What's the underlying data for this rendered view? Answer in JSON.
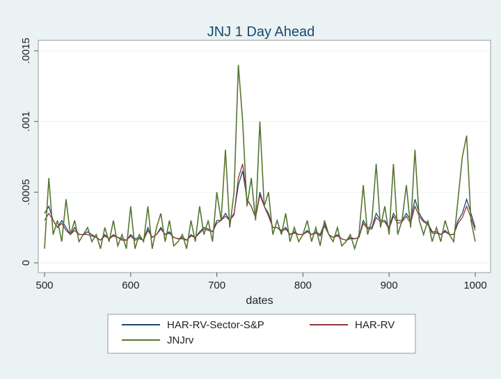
{
  "chart_data": {
    "type": "line",
    "title": "JNJ 1 Day Ahead",
    "x_label": "dates",
    "x": [
      500,
      505,
      510,
      515,
      520,
      525,
      530,
      535,
      540,
      545,
      550,
      555,
      560,
      565,
      570,
      575,
      580,
      585,
      590,
      595,
      600,
      605,
      610,
      615,
      620,
      625,
      630,
      635,
      640,
      645,
      650,
      655,
      660,
      665,
      670,
      675,
      680,
      685,
      690,
      695,
      700,
      705,
      710,
      715,
      720,
      725,
      730,
      735,
      740,
      745,
      750,
      755,
      760,
      765,
      770,
      775,
      780,
      785,
      790,
      795,
      800,
      805,
      810,
      815,
      820,
      825,
      830,
      835,
      840,
      845,
      850,
      855,
      860,
      865,
      870,
      875,
      880,
      885,
      890,
      895,
      900,
      905,
      910,
      915,
      920,
      925,
      930,
      935,
      940,
      945,
      950,
      955,
      960,
      965,
      970,
      975,
      980,
      985,
      990,
      995,
      1000
    ],
    "series": [
      {
        "name": "HAR-RV-Sector-S&P",
        "color": "#1a476f",
        "values": [
          0.00035,
          0.0004,
          0.0003,
          0.00025,
          0.0003,
          0.00025,
          0.0002,
          0.00025,
          0.0002,
          0.0002,
          0.00022,
          0.0002,
          0.00018,
          0.00016,
          0.0002,
          0.00017,
          0.0002,
          0.00018,
          0.00017,
          0.00016,
          0.0002,
          0.00017,
          0.00018,
          0.00016,
          0.00025,
          0.00018,
          0.0002,
          0.00025,
          0.0002,
          0.00022,
          0.00018,
          0.00017,
          0.00018,
          0.00016,
          0.0002,
          0.00018,
          0.00022,
          0.00025,
          0.00024,
          0.00022,
          0.0003,
          0.0003,
          0.00035,
          0.0003,
          0.00035,
          0.00055,
          0.00065,
          0.00045,
          0.0004,
          0.00032,
          0.0005,
          0.0004,
          0.00035,
          0.00025,
          0.00025,
          0.00023,
          0.00025,
          0.0002,
          0.00022,
          0.0002,
          0.0002,
          0.00023,
          0.0002,
          0.00022,
          0.0002,
          0.00028,
          0.0002,
          0.00018,
          0.0002,
          0.00017,
          0.00016,
          0.00018,
          0.00017,
          0.00018,
          0.0003,
          0.00025,
          0.00025,
          0.00035,
          0.0003,
          0.0003,
          0.00025,
          0.00035,
          0.0003,
          0.0003,
          0.00035,
          0.0003,
          0.00045,
          0.00035,
          0.0003,
          0.00028,
          0.00022,
          0.00022,
          0.0002,
          0.00023,
          0.0002,
          0.0002,
          0.0003,
          0.00035,
          0.00045,
          0.00035,
          0.00025
        ]
      },
      {
        "name": "HAR-RV",
        "color": "#90353b",
        "values": [
          0.0003,
          0.00035,
          0.0003,
          0.00025,
          0.00028,
          0.00023,
          0.0002,
          0.00023,
          0.0002,
          0.0002,
          0.0002,
          0.00019,
          0.00018,
          0.00016,
          0.00019,
          0.00017,
          0.00019,
          0.00018,
          0.00016,
          0.00016,
          0.00019,
          0.00016,
          0.00017,
          0.00016,
          0.00023,
          0.00018,
          0.0002,
          0.00024,
          0.0002,
          0.00021,
          0.00018,
          0.00017,
          0.00017,
          0.00016,
          0.00019,
          0.00018,
          0.00021,
          0.00024,
          0.00023,
          0.00022,
          0.00028,
          0.0003,
          0.00033,
          0.0003,
          0.00034,
          0.0006,
          0.0007,
          0.00045,
          0.0004,
          0.00032,
          0.00048,
          0.0004,
          0.00033,
          0.00025,
          0.00025,
          0.00022,
          0.00024,
          0.0002,
          0.00021,
          0.0002,
          0.0002,
          0.00022,
          0.0002,
          0.00021,
          0.00019,
          0.00026,
          0.0002,
          0.00018,
          0.00019,
          0.00017,
          0.00016,
          0.00017,
          0.00017,
          0.00018,
          0.00028,
          0.00024,
          0.00024,
          0.00032,
          0.00029,
          0.00029,
          0.00024,
          0.00033,
          0.00028,
          0.00029,
          0.00033,
          0.00028,
          0.0004,
          0.00033,
          0.00029,
          0.00027,
          0.00021,
          0.00021,
          0.0002,
          0.00022,
          0.0002,
          0.0002,
          0.00028,
          0.00032,
          0.0004,
          0.00032,
          0.00023
        ]
      },
      {
        "name": "JNJrv",
        "color": "#55752f",
        "values": [
          0.0001,
          0.0006,
          0.0002,
          0.0003,
          0.00015,
          0.00045,
          0.0002,
          0.0003,
          0.00015,
          0.0002,
          0.00025,
          0.00015,
          0.0002,
          0.0001,
          0.00025,
          0.00015,
          0.0003,
          0.00012,
          0.0002,
          0.0001,
          0.0004,
          0.0001,
          0.0002,
          0.00015,
          0.0004,
          0.0001,
          0.00025,
          0.00035,
          0.00015,
          0.0003,
          0.00012,
          0.00015,
          0.0002,
          0.0001,
          0.0003,
          0.00015,
          0.0004,
          0.0002,
          0.0003,
          0.00015,
          0.0005,
          0.0003,
          0.0008,
          0.00025,
          0.0005,
          0.0014,
          0.001,
          0.0004,
          0.0006,
          0.0003,
          0.001,
          0.0004,
          0.0005,
          0.0002,
          0.0003,
          0.0002,
          0.00035,
          0.00015,
          0.00025,
          0.00015,
          0.0002,
          0.0003,
          0.00015,
          0.00025,
          0.00012,
          0.0003,
          0.0002,
          0.00015,
          0.00025,
          0.00012,
          0.00015,
          0.0002,
          0.0001,
          0.0002,
          0.00055,
          0.0002,
          0.0003,
          0.0007,
          0.00025,
          0.0004,
          0.0002,
          0.0007,
          0.0002,
          0.0003,
          0.00055,
          0.00025,
          0.0008,
          0.0003,
          0.0002,
          0.0003,
          0.00015,
          0.00025,
          0.00015,
          0.0003,
          0.0002,
          0.00015,
          0.00045,
          0.00075,
          0.0009,
          0.0003,
          0.00015
        ]
      }
    ],
    "xlim": [
      500,
      1000
    ],
    "xticks": [
      500,
      600,
      700,
      800,
      900,
      1000
    ],
    "ylim": [
      0,
      0.0015
    ],
    "yticks": [
      0,
      {
        "value": 0.0005,
        "label": ".0005"
      },
      {
        "value": 0.001,
        "label": ".001"
      },
      {
        "value": 0.0015,
        "label": ".0015"
      }
    ],
    "grid": true
  }
}
